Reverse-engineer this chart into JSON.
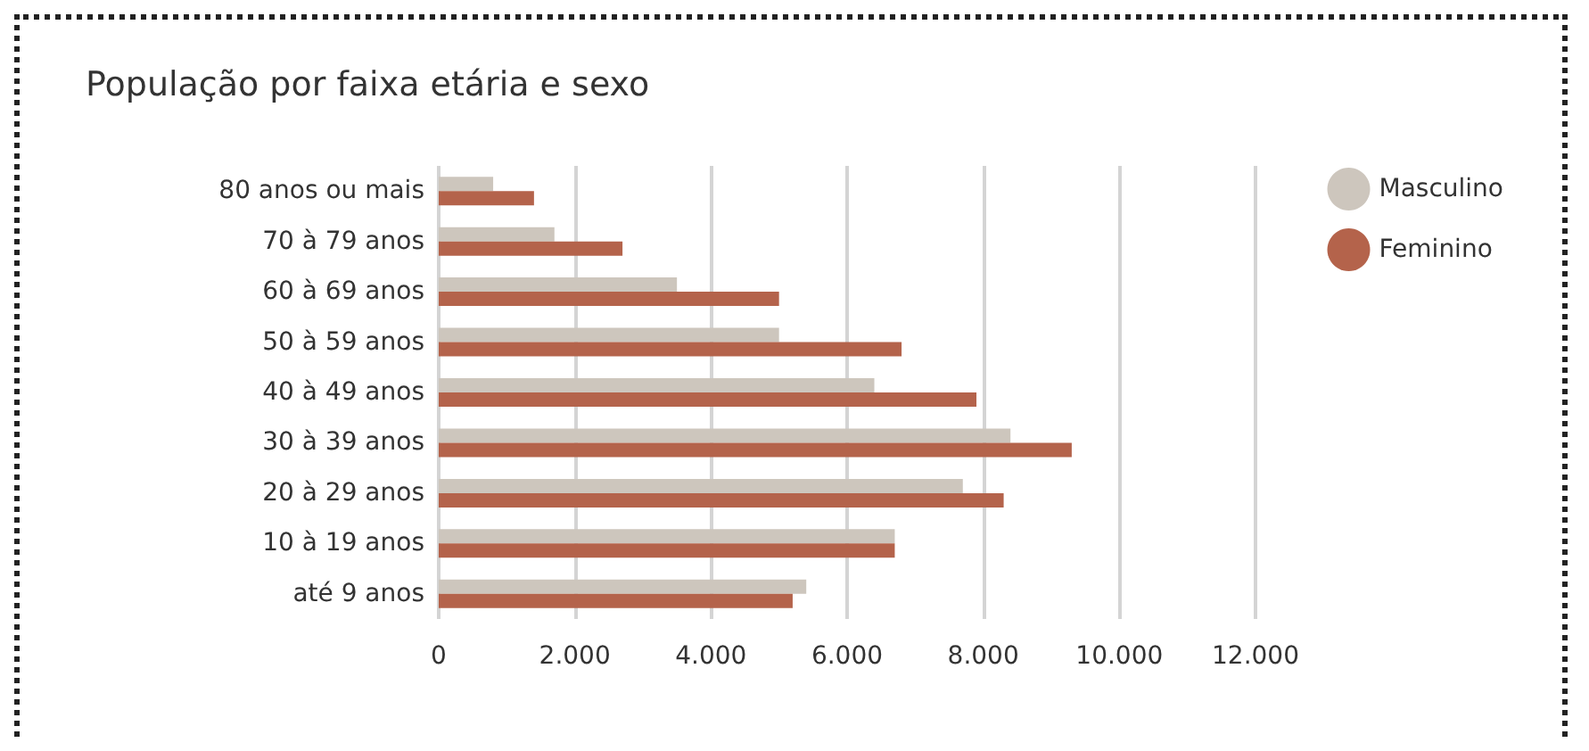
{
  "chart_data": {
    "type": "bar",
    "orientation": "horizontal",
    "title": "População por faixa etária e sexo",
    "categories": [
      "80 anos ou mais",
      "70 à 79 anos",
      "60 à 69 anos",
      "50 à 59 anos",
      "40 à 49 anos",
      "30 à 39 anos",
      "20 à 29 anos",
      "10 à 19 anos",
      "até 9 anos"
    ],
    "series": [
      {
        "name": "Masculino",
        "color": "#cdc6bd",
        "values": [
          800,
          1700,
          3500,
          5000,
          6400,
          8400,
          7700,
          6700,
          5400
        ]
      },
      {
        "name": "Feminino",
        "color": "#b4634b",
        "values": [
          1400,
          2700,
          5000,
          6800,
          7900,
          9300,
          8300,
          6700,
          5200
        ]
      }
    ],
    "xlim": [
      0,
      12000
    ],
    "xticks": [
      {
        "value": 0,
        "label": "0"
      },
      {
        "value": 2000,
        "label": "2.000"
      },
      {
        "value": 4000,
        "label": "4.000"
      },
      {
        "value": 6000,
        "label": "6.000"
      },
      {
        "value": 8000,
        "label": "8.000"
      },
      {
        "value": 10000,
        "label": "10.000"
      },
      {
        "value": 12000,
        "label": "12.000"
      }
    ],
    "grid": "x",
    "legend": "top right"
  }
}
